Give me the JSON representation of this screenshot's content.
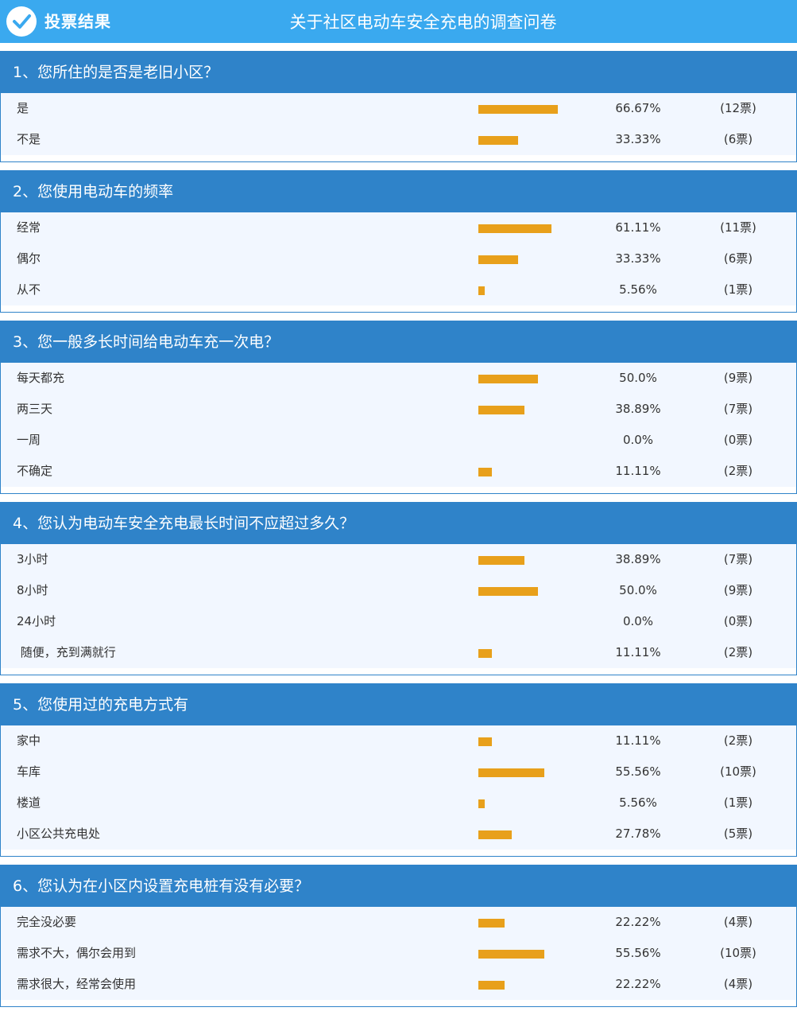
{
  "header": {
    "brand": "投票结果",
    "title": "关于社区电动车安全充电的调查问卷"
  },
  "colors": {
    "accent": "#3aa9ef",
    "header_band": "#2f83c9",
    "bar": "#e8a01b"
  },
  "questions": [
    {
      "title": "1、您所住的是否是老旧小区？",
      "options": [
        {
          "label": "是",
          "percent": "66.67%",
          "votes": "(12票)",
          "fraction": 0.6667
        },
        {
          "label": "不是",
          "percent": "33.33%",
          "votes": "(6票)",
          "fraction": 0.3333
        }
      ]
    },
    {
      "title": "2、您使用电动车的频率",
      "options": [
        {
          "label": "经常",
          "percent": "61.11%",
          "votes": "(11票)",
          "fraction": 0.6111
        },
        {
          "label": "偶尔",
          "percent": "33.33%",
          "votes": "(6票)",
          "fraction": 0.3333
        },
        {
          "label": "从不",
          "percent": "5.56%",
          "votes": "(1票)",
          "fraction": 0.0556
        }
      ]
    },
    {
      "title": "3、您一般多长时间给电动车充一次电？",
      "options": [
        {
          "label": "每天都充",
          "percent": "50.0%",
          "votes": "(9票)",
          "fraction": 0.5
        },
        {
          "label": "两三天",
          "percent": "38.89%",
          "votes": "(7票)",
          "fraction": 0.3889
        },
        {
          "label": "一周",
          "percent": "0.0%",
          "votes": "(0票)",
          "fraction": 0
        },
        {
          "label": "不确定",
          "percent": "11.11%",
          "votes": "(2票)",
          "fraction": 0.1111
        }
      ]
    },
    {
      "title": "4、您认为电动车安全充电最长时间不应超过多久？",
      "options": [
        {
          "label": "3小时",
          "percent": "38.89%",
          "votes": "(7票)",
          "fraction": 0.3889
        },
        {
          "label": "8小时",
          "percent": "50.0%",
          "votes": "(9票)",
          "fraction": 0.5
        },
        {
          "label": "24小时",
          "percent": "0.0%",
          "votes": "(0票)",
          "fraction": 0
        },
        {
          "label": " 随便，充到满就行",
          "percent": "11.11%",
          "votes": "(2票)",
          "fraction": 0.1111
        }
      ]
    },
    {
      "title": "5、您使用过的充电方式有",
      "options": [
        {
          "label": "家中",
          "percent": "11.11%",
          "votes": "(2票)",
          "fraction": 0.1111
        },
        {
          "label": "车库",
          "percent": "55.56%",
          "votes": "(10票)",
          "fraction": 0.5556
        },
        {
          "label": "楼道",
          "percent": "5.56%",
          "votes": "(1票)",
          "fraction": 0.0556
        },
        {
          "label": "小区公共充电处",
          "percent": "27.78%",
          "votes": "(5票)",
          "fraction": 0.2778
        }
      ]
    },
    {
      "title": "6、您认为在小区内设置充电桩有没有必要？",
      "options": [
        {
          "label": "完全没必要",
          "percent": "22.22%",
          "votes": "(4票)",
          "fraction": 0.2222
        },
        {
          "label": "需求不大，偶尔会用到",
          "percent": "55.56%",
          "votes": "(10票)",
          "fraction": 0.5556
        },
        {
          "label": "需求很大，经常会使用",
          "percent": "22.22%",
          "votes": "(4票)",
          "fraction": 0.2222
        }
      ]
    }
  ]
}
